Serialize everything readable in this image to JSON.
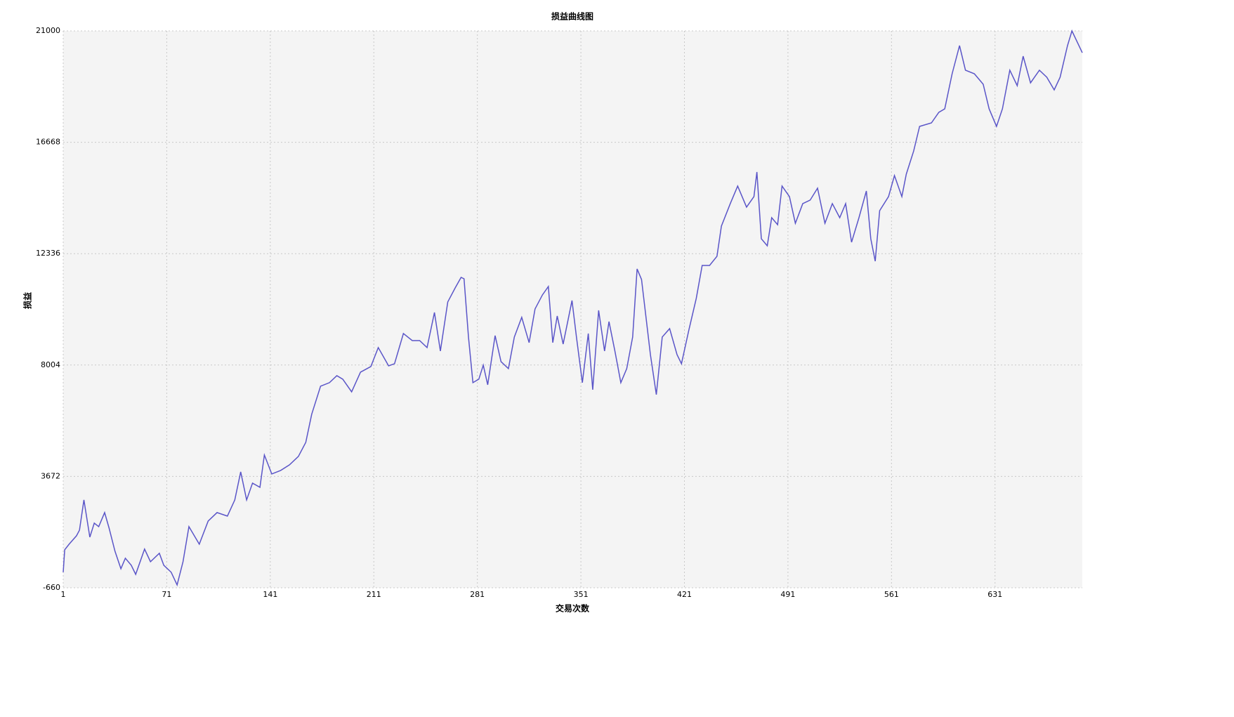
{
  "chart_data": {
    "type": "line",
    "title": "损益曲线图",
    "x_label": "交易次数",
    "y_label": "损益",
    "xlim": [
      1,
      690
    ],
    "xticks": [
      1,
      71,
      141,
      211,
      281,
      351,
      421,
      491,
      561,
      631
    ],
    "ylim": [
      -660,
      21000
    ],
    "yticks": [
      -660,
      3672,
      8004,
      12336,
      16668,
      21000
    ],
    "grid": true,
    "x": [
      1,
      2,
      5,
      10,
      12,
      15,
      19,
      22,
      25,
      29,
      32,
      36,
      40,
      43,
      47,
      50,
      56,
      60,
      66,
      69,
      74,
      78,
      82,
      86,
      93,
      99,
      105,
      112,
      117,
      121,
      125,
      129,
      134,
      137,
      142,
      148,
      154,
      160,
      165,
      169,
      175,
      181,
      186,
      190,
      196,
      202,
      209,
      214,
      221,
      225,
      231,
      237,
      242,
      247,
      252,
      256,
      261,
      266,
      270,
      272,
      275,
      278,
      282,
      285,
      288,
      293,
      297,
      302,
      306,
      311,
      316,
      320,
      325,
      329,
      332,
      335,
      339,
      345,
      348,
      352,
      356,
      359,
      363,
      367,
      370,
      374,
      378,
      382,
      386,
      389,
      392,
      398,
      402,
      406,
      411,
      416,
      419,
      424,
      429,
      433,
      438,
      443,
      446,
      452,
      457,
      463,
      468,
      470,
      473,
      477,
      480,
      484,
      487,
      492,
      496,
      501,
      506,
      511,
      516,
      521,
      526,
      530,
      534,
      539,
      544,
      547,
      550,
      553,
      559,
      563,
      568,
      571,
      576,
      580,
      588,
      593,
      597,
      602,
      607,
      611,
      617,
      623,
      627,
      632,
      636,
      641,
      646,
      650,
      655,
      661,
      666,
      671,
      675,
      680,
      683,
      690
    ],
    "series": [
      {
        "name": "损益",
        "color": "#5a55c8",
        "values": [
          -56,
          818,
          1036,
          1364,
          1582,
          2757,
          1309,
          1856,
          1719,
          2265,
          1665,
          763,
          81,
          490,
          217,
          -138,
          845,
          354,
          682,
          217,
          -56,
          -548,
          354,
          1719,
          1036,
          1937,
          2265,
          2129,
          2757,
          3849,
          2757,
          3412,
          3249,
          4505,
          3768,
          3904,
          4122,
          4450,
          4996,
          6089,
          7181,
          7318,
          7591,
          7454,
          6962,
          7727,
          7946,
          8683,
          7973,
          8055,
          9229,
          8956,
          8956,
          8683,
          10048,
          8547,
          10458,
          11004,
          11414,
          11360,
          9093,
          7318,
          7454,
          8000,
          7236,
          9148,
          8137,
          7864,
          9093,
          9858,
          8875,
          10185,
          10731,
          11059,
          8875,
          9912,
          8820,
          10513,
          9093,
          7318,
          9229,
          7044,
          10130,
          8547,
          9694,
          8547,
          7318,
          7864,
          9093,
          11742,
          11332,
          8410,
          6854,
          9093,
          9420,
          8410,
          8055,
          9366,
          10595,
          11878,
          11878,
          12233,
          13407,
          14282,
          14965,
          14145,
          14555,
          15511,
          12916,
          12643,
          13735,
          13462,
          14965,
          14555,
          13517,
          14282,
          14418,
          14883,
          13517,
          14282,
          13735,
          14282,
          12780,
          13735,
          14774,
          12916,
          12042,
          14009,
          14555,
          15374,
          14555,
          15429,
          16330,
          17286,
          17422,
          17832,
          17969,
          19334,
          20427,
          19471,
          19334,
          18925,
          17969,
          17286,
          17969,
          19471,
          18870,
          20017,
          18979,
          19471,
          19198,
          18706,
          19198,
          20427,
          21000,
          20153
        ]
      }
    ]
  }
}
